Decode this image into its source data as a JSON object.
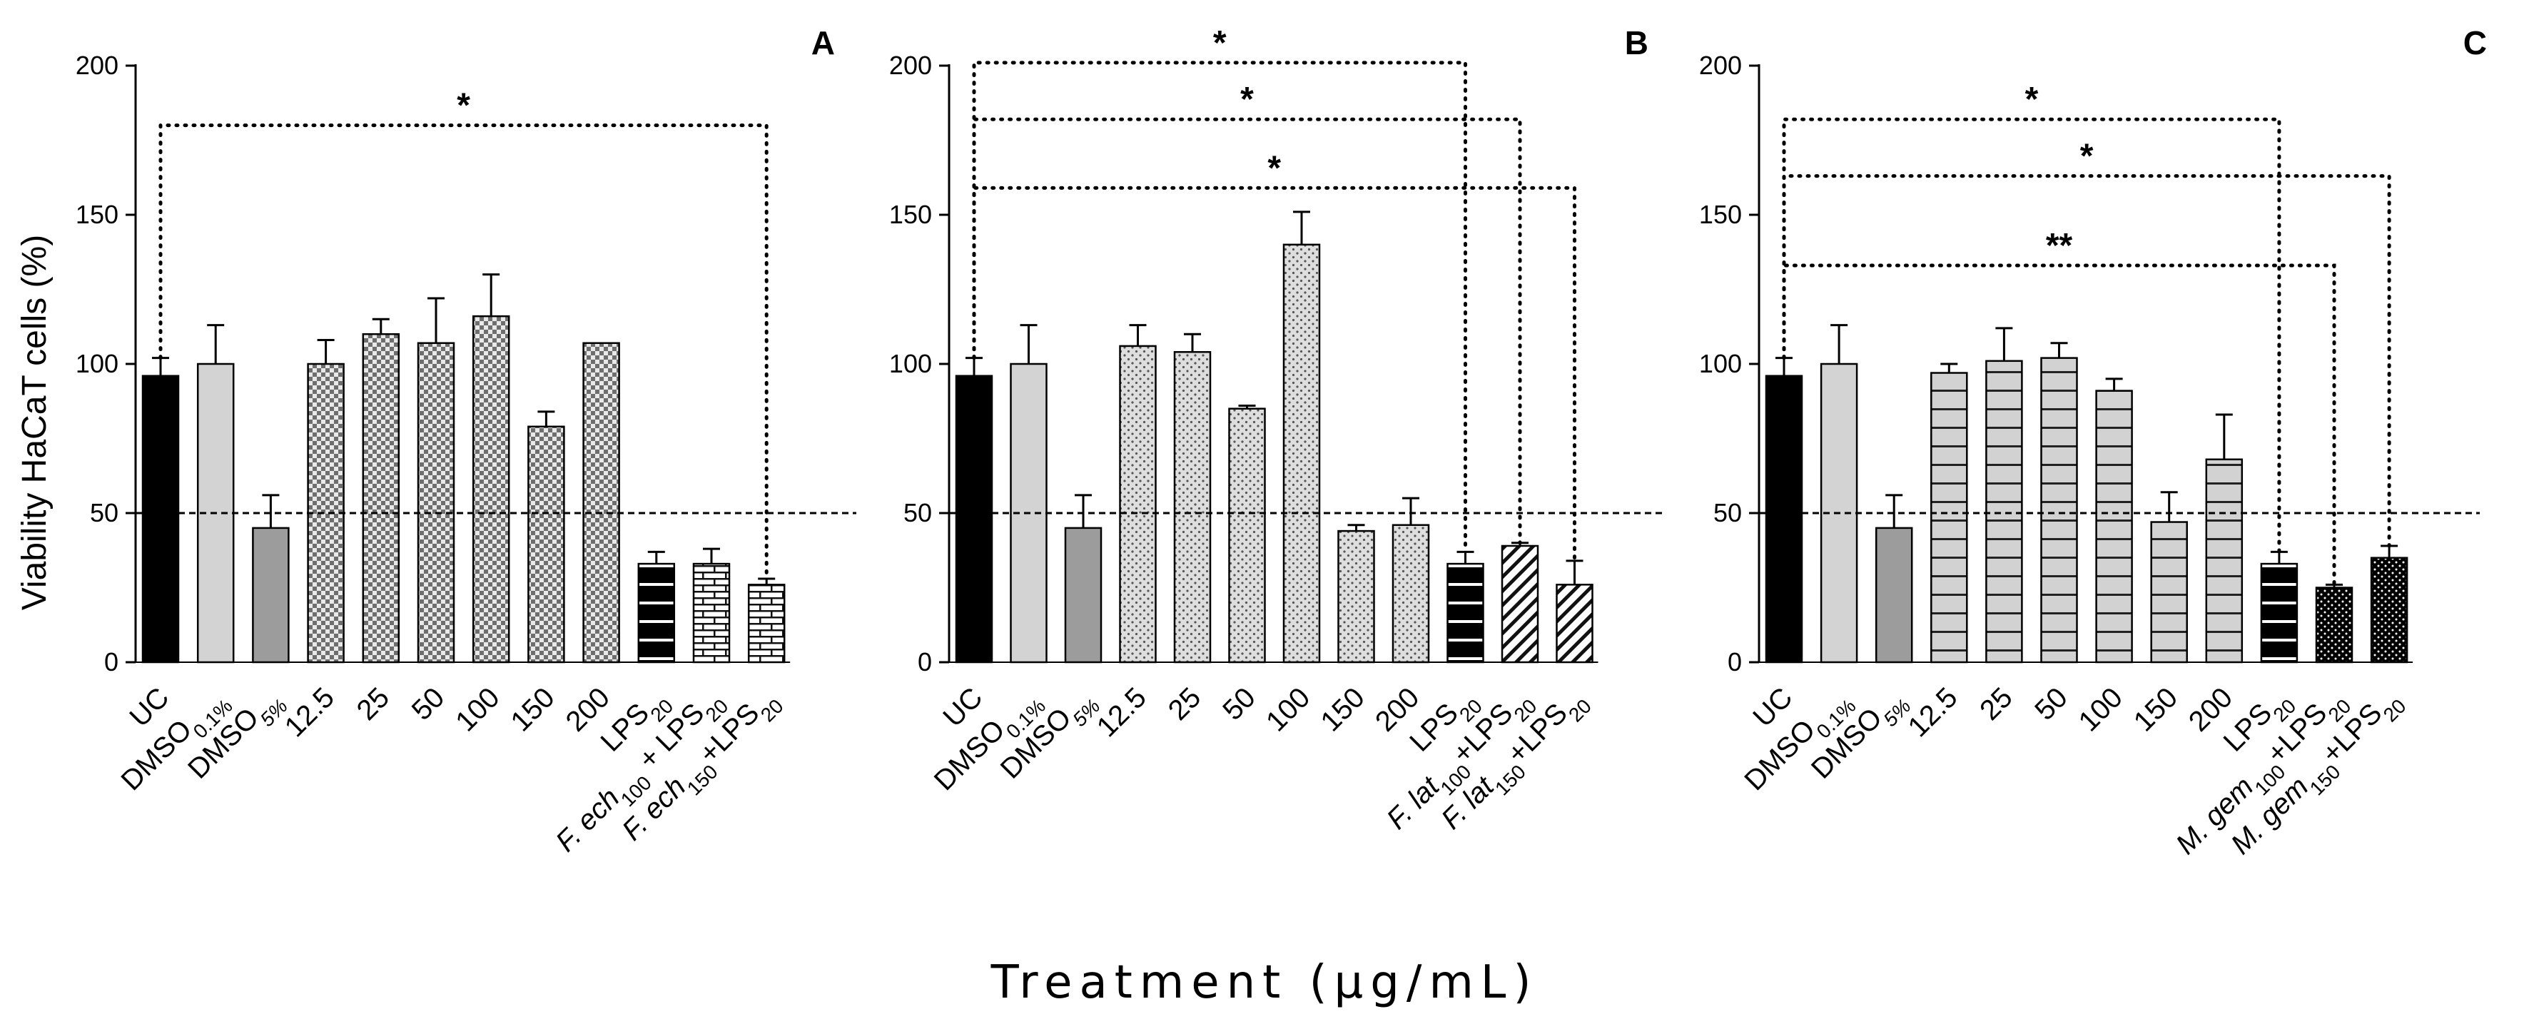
{
  "y_axis_title": "Viability HaCaT cells (%)",
  "x_axis_title": "Treatment (µg/mL)",
  "chart_data": [
    {
      "type": "bar",
      "panel_label": "A",
      "ylim": [
        0,
        200
      ],
      "yticks": [
        "0",
        "50",
        "100",
        "150",
        "200"
      ],
      "reference_line": 50,
      "bars": [
        {
          "label": "UC",
          "value": 96,
          "error": 6,
          "fill": "black"
        },
        {
          "label": "DMSO|0.1%",
          "value": 100,
          "error": 13,
          "fill": "lightgray"
        },
        {
          "label": "DMSO|5%",
          "value": 45,
          "error": 11,
          "fill": "gray"
        },
        {
          "label": "12.5",
          "value": 100,
          "error": 8,
          "fill": "checker"
        },
        {
          "label": "25",
          "value": 110,
          "error": 5,
          "fill": "checker"
        },
        {
          "label": "50",
          "value": 107,
          "error": 15,
          "fill": "checker"
        },
        {
          "label": "100",
          "value": 116,
          "error": 14,
          "fill": "checker"
        },
        {
          "label": "150",
          "value": 79,
          "error": 5,
          "fill": "checker"
        },
        {
          "label": "200",
          "value": 107,
          "error": 0,
          "fill": "checker"
        },
        {
          "label": "LPS|20",
          "value": 33,
          "error": 4,
          "fill": "black-stripes"
        },
        {
          "label": "F. ech|100| + LPS|20",
          "value": 33,
          "error": 5,
          "fill": "brick"
        },
        {
          "label": "F. ech|150|+LPS|20",
          "value": 26,
          "error": 2,
          "fill": "brick"
        }
      ],
      "significance": [
        {
          "from": 0,
          "to": 11,
          "level": 180,
          "mark": "*"
        }
      ]
    },
    {
      "type": "bar",
      "panel_label": "B",
      "ylim": [
        0,
        200
      ],
      "yticks": [
        "0",
        "50",
        "100",
        "150",
        "200"
      ],
      "reference_line": 50,
      "bars": [
        {
          "label": "UC",
          "value": 96,
          "error": 6,
          "fill": "black"
        },
        {
          "label": "DMSO|0.1%",
          "value": 100,
          "error": 13,
          "fill": "lightgray"
        },
        {
          "label": "DMSO|5%",
          "value": 45,
          "error": 11,
          "fill": "gray"
        },
        {
          "label": "12.5",
          "value": 106,
          "error": 7,
          "fill": "dots"
        },
        {
          "label": "25",
          "value": 104,
          "error": 6,
          "fill": "dots"
        },
        {
          "label": "50",
          "value": 85,
          "error": 1,
          "fill": "dots"
        },
        {
          "label": "100",
          "value": 140,
          "error": 11,
          "fill": "dots"
        },
        {
          "label": "150",
          "value": 44,
          "error": 2,
          "fill": "dots"
        },
        {
          "label": "200",
          "value": 46,
          "error": 9,
          "fill": "dots"
        },
        {
          "label": "LPS|20",
          "value": 33,
          "error": 4,
          "fill": "black-stripes"
        },
        {
          "label": "F. lat|100|+LPS|20",
          "value": 39,
          "error": 1,
          "fill": "diagonal"
        },
        {
          "label": "F. lat|150|+LPS|20",
          "value": 26,
          "error": 8,
          "fill": "diagonal"
        }
      ],
      "significance": [
        {
          "from": 0,
          "to": 9,
          "level": 201,
          "mark": "*"
        },
        {
          "from": 0,
          "to": 10,
          "level": 182,
          "mark": "*"
        },
        {
          "from": 0,
          "to": 11,
          "level": 159,
          "mark": "*"
        }
      ]
    },
    {
      "type": "bar",
      "panel_label": "C",
      "ylim": [
        0,
        200
      ],
      "yticks": [
        "0",
        "50",
        "100",
        "150",
        "200"
      ],
      "reference_line": 50,
      "bars": [
        {
          "label": "UC",
          "value": 96,
          "error": 6,
          "fill": "black"
        },
        {
          "label": "DMSO|0.1%",
          "value": 100,
          "error": 13,
          "fill": "lightgray"
        },
        {
          "label": "DMSO|5%",
          "value": 45,
          "error": 11,
          "fill": "gray"
        },
        {
          "label": "12.5",
          "value": 97,
          "error": 3,
          "fill": "hstripes"
        },
        {
          "label": "25",
          "value": 101,
          "error": 11,
          "fill": "hstripes"
        },
        {
          "label": "50",
          "value": 102,
          "error": 5,
          "fill": "hstripes"
        },
        {
          "label": "100",
          "value": 91,
          "error": 4,
          "fill": "hstripes"
        },
        {
          "label": "150",
          "value": 47,
          "error": 10,
          "fill": "hstripes"
        },
        {
          "label": "200",
          "value": 68,
          "error": 15,
          "fill": "hstripes"
        },
        {
          "label": "LPS|20",
          "value": 33,
          "error": 4,
          "fill": "black-stripes"
        },
        {
          "label": "M. gem|100|+LPS|20",
          "value": 25,
          "error": 1,
          "fill": "black-dots"
        },
        {
          "label": "M. gem|150|+LPS|20",
          "value": 35,
          "error": 4,
          "fill": "black-dots"
        }
      ],
      "significance": [
        {
          "from": 0,
          "to": 9,
          "level": 182,
          "mark": "*"
        },
        {
          "from": 0,
          "to": 11,
          "level": 163,
          "mark": "*"
        },
        {
          "from": 0,
          "to": 10,
          "level": 133,
          "mark": "**"
        }
      ]
    }
  ]
}
